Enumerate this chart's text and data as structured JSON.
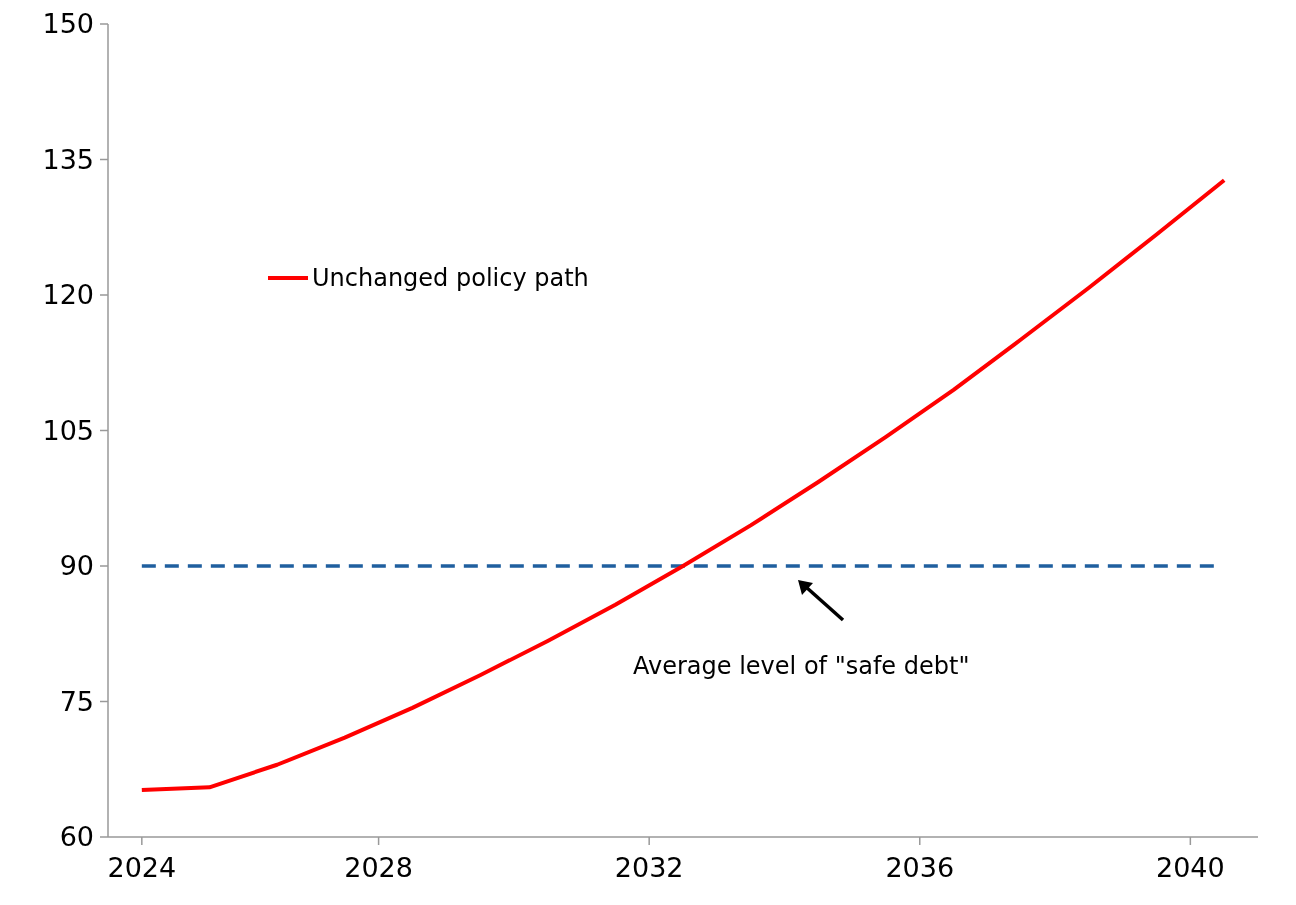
{
  "chart_data": {
    "type": "line",
    "x": [
      2024,
      2025,
      2026,
      2027,
      2028,
      2029,
      2030,
      2031,
      2032,
      2033,
      2034,
      2035,
      2036,
      2037,
      2038,
      2039,
      2040
    ],
    "series": [
      {
        "name": "Unchanged policy path",
        "color": "#ff0000",
        "values": [
          65.2,
          65.5,
          68.0,
          71.0,
          74.3,
          77.9,
          81.7,
          85.7,
          90.0,
          94.5,
          99.3,
          104.3,
          109.5,
          115.1,
          120.8,
          126.7,
          132.7
        ]
      }
    ],
    "xlim": [
      2023.5,
      2040.5
    ],
    "xticks": [
      {
        "value": 2024,
        "label": "2024"
      },
      {
        "value": 2027.5,
        "label": "2028"
      },
      {
        "value": 2031.5,
        "label": "2032"
      },
      {
        "value": 2035.5,
        "label": "2036"
      },
      {
        "value": 2039.5,
        "label": "2040"
      }
    ],
    "ylim": [
      60,
      150
    ],
    "yticks": [
      60,
      75,
      90,
      105,
      120,
      135,
      150
    ],
    "ref_lines": [
      {
        "axis": "y",
        "value": 90,
        "color": "#1f5f9f",
        "line_style": "dashed"
      }
    ],
    "annotations": [
      "Average level of \"safe debt\""
    ],
    "legend": "top left",
    "grid": false,
    "line_style": "solid",
    "marker": "none"
  }
}
